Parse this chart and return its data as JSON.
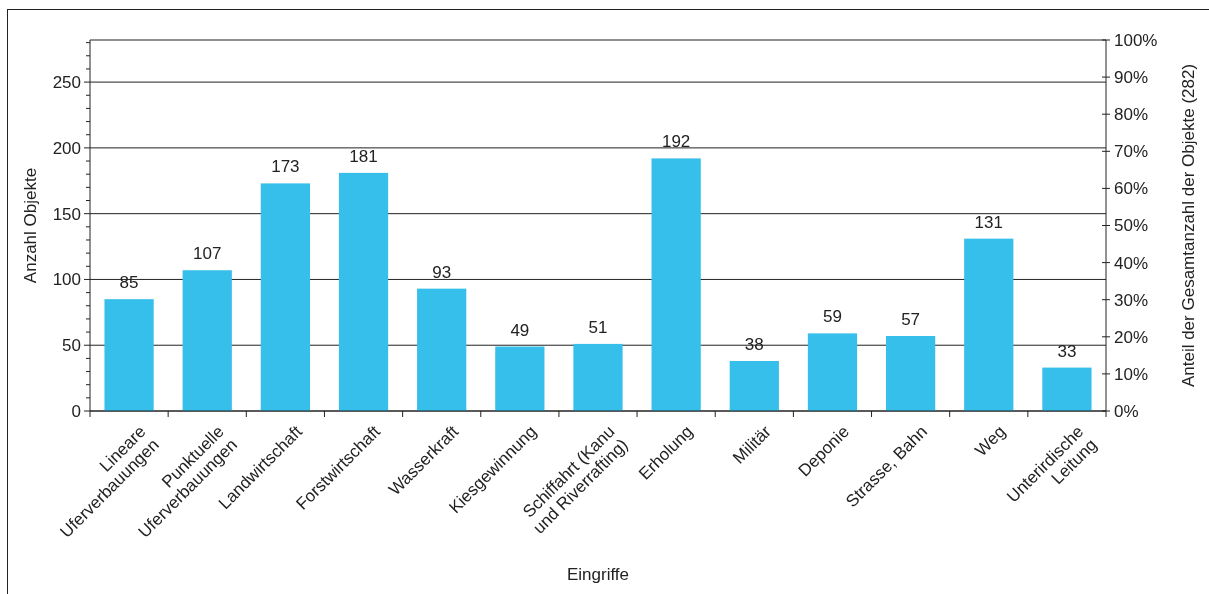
{
  "chart_data": {
    "type": "bar",
    "xlabel": "Eingriffe",
    "ylabel": "Anzahl Objekte",
    "y2label": "Anteil der Gesamtanzahl der Objekte (282)",
    "categories": [
      "Lineare\nUferverbauungen",
      "Punktuelle\nUferverbauungen",
      "Landwirtschaft",
      "Forstwirtschaft",
      "Wasserkraft",
      "Kiesgewinnung",
      "Schiffahrt (Kanu\nund Riverrafting)",
      "Erholung",
      "Militär",
      "Deponie",
      "Strasse, Bahn",
      "Weg",
      "Unterirdische\nLeitung"
    ],
    "values": [
      85,
      107,
      173,
      181,
      93,
      49,
      51,
      192,
      38,
      59,
      57,
      131,
      33
    ],
    "color": "#36bfea",
    "data_labels": true,
    "grid": "y",
    "ylim": [
      0,
      282
    ],
    "yticks": [
      0,
      {
        "value": 10,
        "label": null
      },
      {
        "value": 20,
        "label": null
      },
      {
        "value": 30,
        "label": null
      },
      {
        "value": 40,
        "label": null
      },
      50,
      {
        "value": 60,
        "label": null
      },
      {
        "value": 70,
        "label": null
      },
      {
        "value": 80,
        "label": null
      },
      {
        "value": 90,
        "label": null
      },
      100,
      {
        "value": 110,
        "label": null
      },
      {
        "value": 120,
        "label": null
      },
      {
        "value": 130,
        "label": null
      },
      {
        "value": 140,
        "label": null
      },
      150,
      {
        "value": 160,
        "label": null
      },
      {
        "value": 170,
        "label": null
      },
      {
        "value": 180,
        "label": null
      },
      {
        "value": 190,
        "label": null
      },
      200,
      {
        "value": 210,
        "label": null
      },
      {
        "value": 220,
        "label": null
      },
      {
        "value": 230,
        "label": null
      },
      {
        "value": 240,
        "label": null
      },
      250,
      {
        "value": 260,
        "label": null
      },
      {
        "value": 270,
        "label": null
      },
      {
        "value": 280,
        "label": null
      }
    ],
    "y2lim": [
      0,
      100
    ],
    "y2ticks": [
      {
        "value": 0,
        "label": "0%"
      },
      {
        "value": 10,
        "label": "10%"
      },
      {
        "value": 20,
        "label": "20%"
      },
      {
        "value": 30,
        "label": "30%"
      },
      {
        "value": 40,
        "label": "40%"
      },
      {
        "value": 50,
        "label": "50%"
      },
      {
        "value": 60,
        "label": "60%"
      },
      {
        "value": 70,
        "label": "70%"
      },
      {
        "value": 80,
        "label": "80%"
      },
      {
        "value": 90,
        "label": "90%"
      },
      {
        "value": 100,
        "label": "100%"
      }
    ]
  }
}
